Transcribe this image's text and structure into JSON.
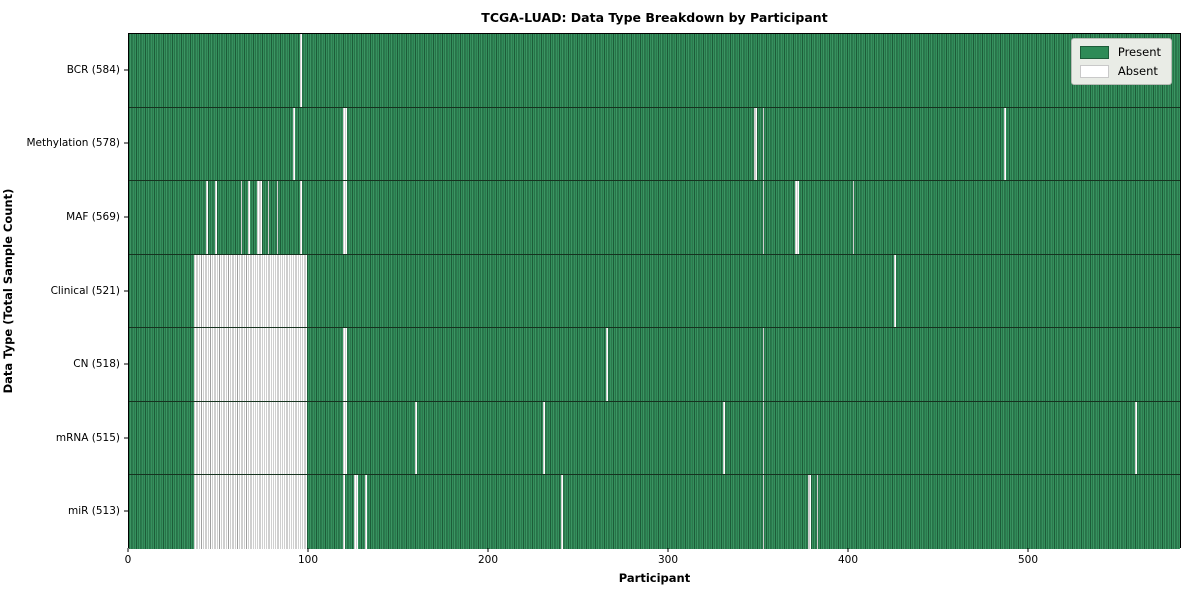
{
  "figure": {
    "title": "TCGA-LUAD: Data Type Breakdown by Participant",
    "xlabel": "Participant",
    "ylabel": "Data Type (Total Sample Count)"
  },
  "chart_data": {
    "type": "heatmap",
    "title": "TCGA-LUAD: Data Type Breakdown by Participant",
    "xlabel": "Participant",
    "ylabel": "Data Type (Total Sample Count)",
    "n_participants": 585,
    "x_ticks": [
      0,
      100,
      200,
      300,
      400,
      500
    ],
    "grid": false,
    "legend_position": "upper right",
    "colors": {
      "present": "#2e8b57",
      "present_edge": "#1d5c39",
      "absent": "#ffffff",
      "absent_edge": "#9f9f9f",
      "legend_bg": "#e9ece6"
    },
    "legend": [
      {
        "label": "Present",
        "color": "#2e8b57"
      },
      {
        "label": "Absent",
        "color": "#ffffff"
      }
    ],
    "rows": [
      {
        "label": "BCR (584)",
        "data_type": "BCR",
        "count": 584,
        "absent": [
          95
        ]
      },
      {
        "label": "Methylation (578)",
        "data_type": "Methylation",
        "count": 578,
        "absent": [
          91,
          119,
          120,
          347,
          348,
          352,
          486
        ]
      },
      {
        "label": "MAF (569)",
        "data_type": "MAF",
        "count": 569,
        "absent": [
          43,
          48,
          62,
          66,
          71,
          72,
          73,
          77,
          82,
          95,
          119,
          120,
          352,
          370,
          371,
          402
        ]
      },
      {
        "label": "Clinical (521)",
        "data_type": "Clinical",
        "count": 521,
        "absent_range": [
          36,
          98
        ],
        "absent": [
          425
        ]
      },
      {
        "label": "CN (518)",
        "data_type": "CN",
        "count": 518,
        "absent_range": [
          36,
          98
        ],
        "absent": [
          119,
          120,
          265,
          352
        ]
      },
      {
        "label": "mRNA (515)",
        "data_type": "mRNA",
        "count": 515,
        "absent_range": [
          36,
          98
        ],
        "absent": [
          119,
          120,
          159,
          230,
          330,
          352,
          559
        ]
      },
      {
        "label": "miR (513)",
        "data_type": "miR",
        "count": 513,
        "absent_range": [
          36,
          98
        ],
        "absent": [
          119,
          125,
          126,
          131,
          240,
          352,
          377,
          378,
          382
        ]
      }
    ]
  }
}
